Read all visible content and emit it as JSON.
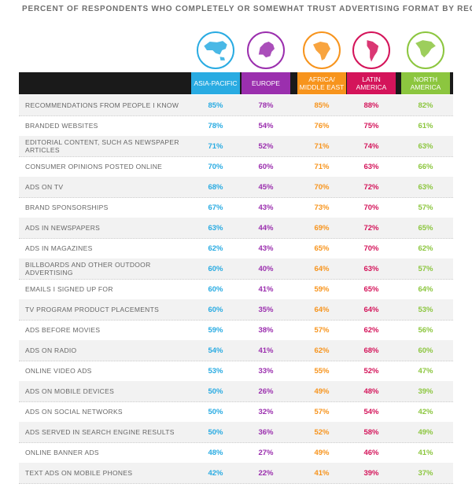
{
  "title": "PERCENT OF RESPONDENTS WHO COMPLETELY OR SOMEWHAT TRUST ADVERTISING FORMAT BY REGION",
  "icons": [
    {
      "name": "asia-pacific-map-icon",
      "color": "#29abe2"
    },
    {
      "name": "europe-map-icon",
      "color": "#9b2fae"
    },
    {
      "name": "africa-map-icon",
      "color": "#f7941d"
    },
    {
      "name": "latin-america-map-icon",
      "color": "#d4145a"
    },
    {
      "name": "north-america-map-icon",
      "color": "#8cc63f"
    }
  ],
  "chart_data": {
    "type": "table",
    "title": "PERCENT OF RESPONDENTS WHO COMPLETELY OR SOMEWHAT TRUST ADVERTISING FORMAT BY REGION",
    "columns": [
      {
        "label": "ASIA-PACIFIC",
        "color": "#29abe2"
      },
      {
        "label": "EUROPE",
        "color": "#9b2fae"
      },
      {
        "label": "AFRICA/ MIDDLE EAST",
        "color": "#f7941d"
      },
      {
        "label": "LATIN AMERICA",
        "color": "#d4145a"
      },
      {
        "label": "NORTH AMERICA",
        "color": "#8cc63f"
      }
    ],
    "rows": [
      {
        "label": "RECOMMENDATIONS FROM PEOPLE I KNOW",
        "values": [
          "85%",
          "78%",
          "85%",
          "88%",
          "82%"
        ]
      },
      {
        "label": "BRANDED WEBSITES",
        "values": [
          "78%",
          "54%",
          "76%",
          "75%",
          "61%"
        ]
      },
      {
        "label": "EDITORIAL CONTENT, SUCH AS NEWSPAPER ARTICLES",
        "values": [
          "71%",
          "52%",
          "71%",
          "74%",
          "63%"
        ]
      },
      {
        "label": "CONSUMER OPINIONS POSTED ONLINE",
        "values": [
          "70%",
          "60%",
          "71%",
          "63%",
          "66%"
        ]
      },
      {
        "label": "ADS ON TV",
        "values": [
          "68%",
          "45%",
          "70%",
          "72%",
          "63%"
        ]
      },
      {
        "label": "BRAND SPONSORSHIPS",
        "values": [
          "67%",
          "43%",
          "73%",
          "70%",
          "57%"
        ]
      },
      {
        "label": "ADS IN NEWSPAPERS",
        "values": [
          "63%",
          "44%",
          "69%",
          "72%",
          "65%"
        ]
      },
      {
        "label": "ADS IN MAGAZINES",
        "values": [
          "62%",
          "43%",
          "65%",
          "70%",
          "62%"
        ]
      },
      {
        "label": "BILLBOARDS AND OTHER OUTDOOR ADVERTISING",
        "values": [
          "60%",
          "40%",
          "64%",
          "63%",
          "57%"
        ]
      },
      {
        "label": "EMAILS I SIGNED UP FOR",
        "values": [
          "60%",
          "41%",
          "59%",
          "65%",
          "64%"
        ]
      },
      {
        "label": "TV PROGRAM PRODUCT PLACEMENTS",
        "values": [
          "60%",
          "35%",
          "64%",
          "64%",
          "53%"
        ]
      },
      {
        "label": "ADS BEFORE MOVIES",
        "values": [
          "59%",
          "38%",
          "57%",
          "62%",
          "56%"
        ]
      },
      {
        "label": "ADS ON RADIO",
        "values": [
          "54%",
          "41%",
          "62%",
          "68%",
          "60%"
        ]
      },
      {
        "label": "ONLINE VIDEO ADS",
        "values": [
          "53%",
          "33%",
          "55%",
          "52%",
          "47%"
        ]
      },
      {
        "label": "ADS ON MOBILE DEVICES",
        "values": [
          "50%",
          "26%",
          "49%",
          "48%",
          "39%"
        ]
      },
      {
        "label": "ADS ON SOCIAL NETWORKS",
        "values": [
          "50%",
          "32%",
          "57%",
          "54%",
          "42%"
        ]
      },
      {
        "label": "ADS SERVED IN SEARCH ENGINE RESULTS",
        "values": [
          "50%",
          "36%",
          "52%",
          "58%",
          "49%"
        ]
      },
      {
        "label": "ONLINE BANNER ADS",
        "values": [
          "48%",
          "27%",
          "49%",
          "46%",
          "41%"
        ]
      },
      {
        "label": "TEXT ADS ON MOBILE PHONES",
        "values": [
          "42%",
          "22%",
          "41%",
          "39%",
          "37%"
        ]
      }
    ]
  }
}
